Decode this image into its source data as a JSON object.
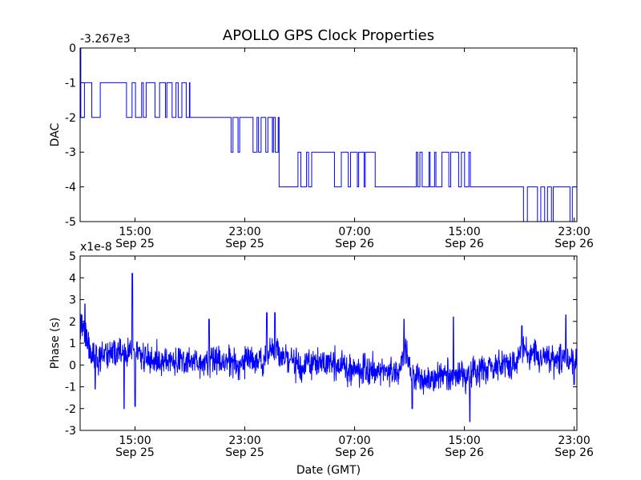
{
  "title": "APOLLO GPS Clock Properties",
  "chart_data": [
    {
      "type": "line",
      "name": "dac",
      "ylabel": "DAC",
      "offset_label": "-3.267e3",
      "ylim": [
        -5,
        0
      ],
      "yticks": [
        0,
        -1,
        -2,
        -3,
        -4,
        -5
      ],
      "xlim_hours": [
        11.0,
        47.2
      ],
      "xticks": [
        {
          "hour": 15,
          "time": "15:00",
          "date": "Sep 25"
        },
        {
          "hour": 23,
          "time": "23:00",
          "date": "Sep 25"
        },
        {
          "hour": 31,
          "time": "07:00",
          "date": "Sep 26"
        },
        {
          "hour": 39,
          "time": "15:00",
          "date": "Sep 26"
        },
        {
          "hour": 47,
          "time": "23:00",
          "date": "Sep 26"
        }
      ],
      "color": "#0000ff",
      "segments": [
        {
          "start": 11.0,
          "end": 19.0,
          "level": -1,
          "base": -2,
          "prob": 0.45,
          "min_dwell": 0.07,
          "max_dwell": 0.5
        },
        {
          "start": 19.0,
          "end": 22.0,
          "level": -2,
          "base": -2,
          "prob": 0.0
        },
        {
          "start": 22.0,
          "end": 24.0,
          "level": -2,
          "base": -3,
          "prob": 0.4,
          "min_dwell": 0.06,
          "max_dwell": 0.35
        },
        {
          "start": 24.0,
          "end": 25.5,
          "level": -2,
          "base": -3,
          "prob": 0.5,
          "min_dwell": 0.05,
          "max_dwell": 0.25
        },
        {
          "start": 25.5,
          "end": 27.5,
          "level": -4,
          "base": -3,
          "prob": 0.15,
          "min_dwell": 0.1,
          "max_dwell": 0.4
        },
        {
          "start": 27.5,
          "end": 32.5,
          "level": -3,
          "base": -4,
          "prob": 0.45,
          "min_dwell": 0.06,
          "max_dwell": 0.45
        },
        {
          "start": 32.5,
          "end": 35.5,
          "level": -4,
          "base": -4,
          "prob": 0.0
        },
        {
          "start": 35.5,
          "end": 39.5,
          "level": -4,
          "base": -3,
          "prob": 0.5,
          "min_dwell": 0.05,
          "max_dwell": 0.35
        },
        {
          "start": 39.5,
          "end": 43.0,
          "level": -4,
          "base": -4,
          "prob": 0.0
        },
        {
          "start": 43.0,
          "end": 47.2,
          "level": -4,
          "base": -5,
          "prob": 0.45,
          "min_dwell": 0.06,
          "max_dwell": 0.4
        }
      ]
    },
    {
      "type": "line",
      "name": "phase",
      "ylabel": "Phase (s)",
      "xlabel": "Date (GMT)",
      "offset_label": "x1e-8",
      "ylim": [
        -3,
        5
      ],
      "yticks": [
        5,
        4,
        3,
        2,
        1,
        0,
        -1,
        -2,
        -3
      ],
      "xlim_hours": [
        11.0,
        47.2
      ],
      "xticks": [
        {
          "hour": 15,
          "time": "15:00",
          "date": "Sep 25"
        },
        {
          "hour": 23,
          "time": "23:00",
          "date": "Sep 25"
        },
        {
          "hour": 31,
          "time": "07:00",
          "date": "Sep 26"
        },
        {
          "hour": 39,
          "time": "15:00",
          "date": "Sep 26"
        },
        {
          "hour": 47,
          "time": "23:00",
          "date": "Sep 26"
        }
      ],
      "color": "#0000ff",
      "samples": 1600,
      "noise_amplitude": 0.35,
      "baseline": [
        [
          11.0,
          1.8
        ],
        [
          11.4,
          1.5
        ],
        [
          11.8,
          0.4
        ],
        [
          12.3,
          0.2
        ],
        [
          13.2,
          0.6
        ],
        [
          14.5,
          0.5
        ],
        [
          15.0,
          0.6
        ],
        [
          16.0,
          0.2
        ],
        [
          17.5,
          0.2
        ],
        [
          19.0,
          0.1
        ],
        [
          21.0,
          0.2
        ],
        [
          22.5,
          0.1
        ],
        [
          24.5,
          0.3
        ],
        [
          25.2,
          0.8
        ],
        [
          25.8,
          0.3
        ],
        [
          27.0,
          0.0
        ],
        [
          29.0,
          0.1
        ],
        [
          31.0,
          -0.2
        ],
        [
          33.0,
          -0.2
        ],
        [
          34.3,
          -0.2
        ],
        [
          34.7,
          0.7
        ],
        [
          35.1,
          -0.4
        ],
        [
          36.0,
          -0.8
        ],
        [
          37.0,
          -0.6
        ],
        [
          38.5,
          -0.5
        ],
        [
          40.0,
          -0.3
        ],
        [
          41.5,
          0.0
        ],
        [
          42.5,
          0.0
        ],
        [
          43.3,
          0.7
        ],
        [
          44.0,
          0.4
        ],
        [
          45.5,
          0.2
        ],
        [
          46.5,
          0.3
        ],
        [
          47.2,
          0.3
        ]
      ],
      "spikes": [
        {
          "hour": 11.35,
          "value": 2.8
        },
        {
          "hour": 12.1,
          "value": -1.1
        },
        {
          "hour": 14.2,
          "value": -2.0
        },
        {
          "hour": 14.8,
          "value": 4.2
        },
        {
          "hour": 15.0,
          "value": -1.9
        },
        {
          "hour": 20.4,
          "value": 2.1
        },
        {
          "hour": 24.6,
          "value": 2.4
        },
        {
          "hour": 25.2,
          "value": 2.4
        },
        {
          "hour": 34.6,
          "value": 2.1
        },
        {
          "hour": 35.2,
          "value": -2.0
        },
        {
          "hour": 38.2,
          "value": 2.2
        },
        {
          "hour": 39.4,
          "value": -2.6
        },
        {
          "hour": 43.2,
          "value": 1.8
        },
        {
          "hour": 46.4,
          "value": 2.3
        },
        {
          "hour": 47.0,
          "value": -0.9
        }
      ]
    }
  ]
}
